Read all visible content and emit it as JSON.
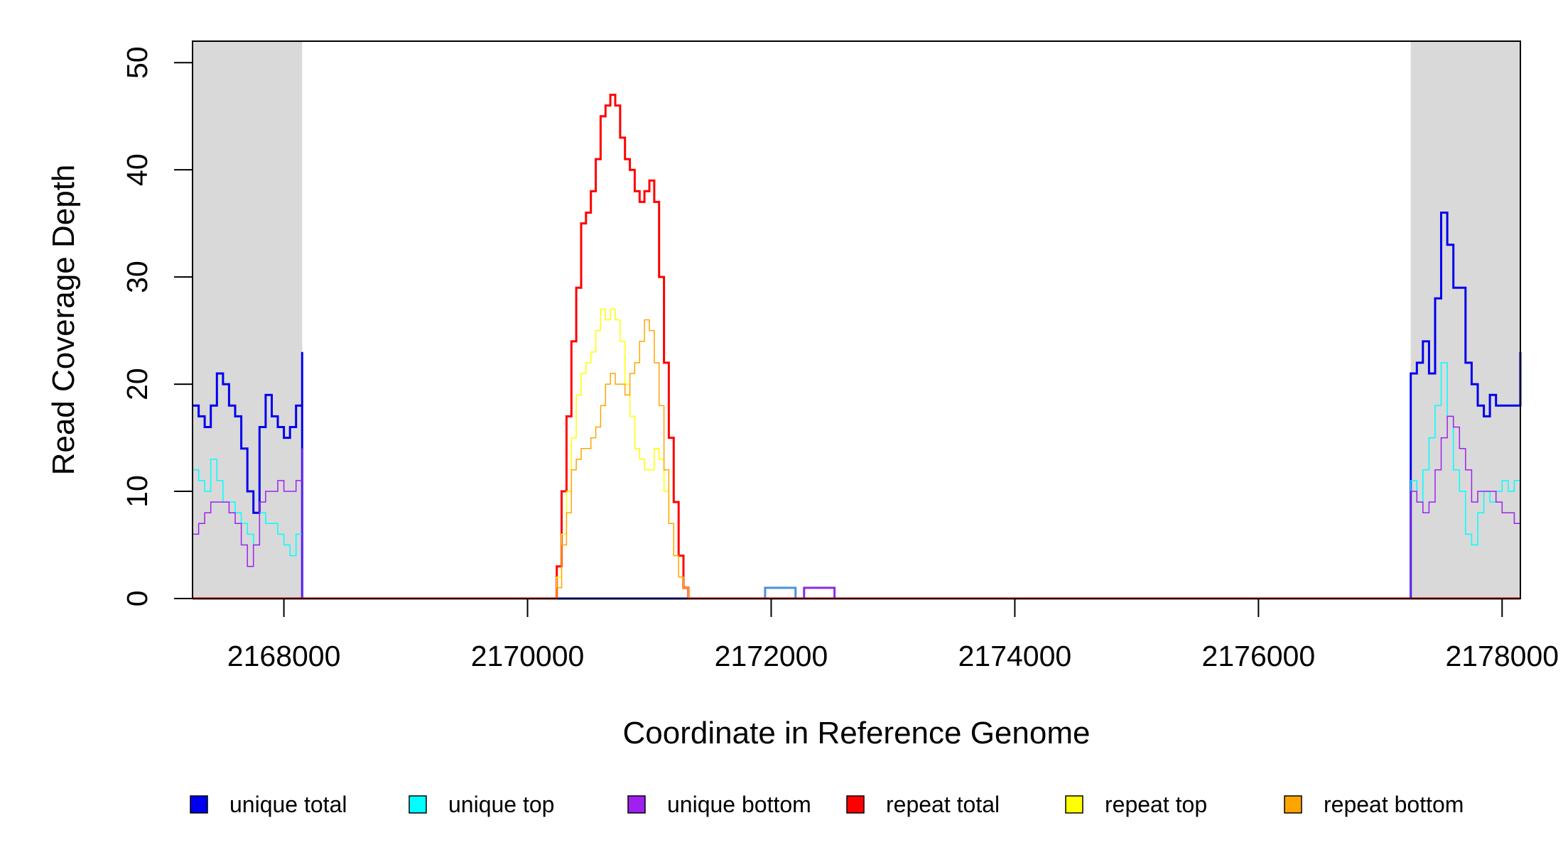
{
  "chart_data": {
    "type": "line",
    "title": "",
    "xlabel": "Coordinate in Reference Genome",
    "ylabel": "Read Coverage Depth",
    "xlim": [
      2167250,
      2178150
    ],
    "ylim": [
      0,
      52
    ],
    "x_ticks": [
      2168000,
      2170000,
      2172000,
      2174000,
      2176000,
      2178000
    ],
    "x_tick_labels": [
      "2168000",
      "2170000",
      "2172000",
      "2174000",
      "2176000",
      "2178000"
    ],
    "y_ticks": [
      0,
      10,
      20,
      30,
      40,
      50
    ],
    "y_tick_labels": [
      "0",
      "10",
      "20",
      "30",
      "40",
      "50"
    ],
    "grid": false,
    "legend_position": "bottom",
    "shaded_regions": [
      {
        "x0": 2167250,
        "x1": 2168150,
        "color": "#d9d9d9"
      },
      {
        "x0": 2177250,
        "x1": 2178150,
        "color": "#d9d9d9"
      }
    ],
    "boxes": [
      {
        "x0": 2171950,
        "x1": 2172200,
        "y0": 0,
        "y1": 1,
        "color": "#4a90e2"
      },
      {
        "x0": 2172270,
        "x1": 2172520,
        "y0": 0,
        "y1": 1,
        "color": "#8a2be2"
      }
    ],
    "series": [
      {
        "name": "unique total",
        "color": "#0000ee",
        "width": 3,
        "x": [
          2167250,
          2167300,
          2167350,
          2167400,
          2167450,
          2167500,
          2167550,
          2167600,
          2167650,
          2167700,
          2167750,
          2167800,
          2167850,
          2167900,
          2167950,
          2168000,
          2168050,
          2168100,
          2168150,
          2168150,
          2177250,
          2177250,
          2177300,
          2177350,
          2177400,
          2177450,
          2177500,
          2177550,
          2177600,
          2177650,
          2177700,
          2177750,
          2177800,
          2177850,
          2177900,
          2177950,
          2178000,
          2178050,
          2178100,
          2178150
        ],
        "y": [
          18,
          17,
          16,
          18,
          21,
          20,
          18,
          17,
          14,
          10,
          8,
          16,
          19,
          17,
          16,
          15,
          16,
          18,
          23,
          0,
          0,
          21,
          22,
          24,
          21,
          28,
          36,
          33,
          29,
          29,
          22,
          20,
          18,
          17,
          19,
          18,
          18,
          18,
          18,
          23
        ]
      },
      {
        "name": "unique top",
        "color": "#00ffff",
        "width": 1.5,
        "x": [
          2167250,
          2167300,
          2167350,
          2167400,
          2167450,
          2167500,
          2167550,
          2167600,
          2167650,
          2167700,
          2167750,
          2167800,
          2167850,
          2167900,
          2167950,
          2168000,
          2168050,
          2168100,
          2168150,
          2168150,
          2177250,
          2177250,
          2177300,
          2177350,
          2177400,
          2177450,
          2177500,
          2177550,
          2177600,
          2177650,
          2177700,
          2177750,
          2177800,
          2177850,
          2177900,
          2177950,
          2178000,
          2178050,
          2178100,
          2178150
        ],
        "y": [
          12,
          11,
          10,
          13,
          11,
          9,
          9,
          8,
          7,
          6,
          5,
          8,
          7,
          7,
          6,
          5,
          4,
          6,
          14,
          0,
          0,
          11,
          9,
          12,
          15,
          18,
          22,
          17,
          12,
          10,
          6,
          5,
          8,
          10,
          9,
          10,
          11,
          10,
          11,
          14
        ]
      },
      {
        "name": "unique bottom",
        "color": "#a020f0",
        "width": 1.5,
        "x": [
          2167250,
          2167300,
          2167350,
          2167400,
          2167450,
          2167500,
          2167550,
          2167600,
          2167650,
          2167700,
          2167750,
          2167800,
          2167850,
          2167900,
          2167950,
          2168000,
          2168050,
          2168100,
          2168150,
          2168150,
          2177250,
          2177250,
          2177300,
          2177350,
          2177400,
          2177450,
          2177500,
          2177550,
          2177600,
          2177650,
          2177700,
          2177750,
          2177800,
          2177850,
          2177900,
          2177950,
          2178000,
          2178050,
          2178100,
          2178150
        ],
        "y": [
          6,
          7,
          8,
          9,
          9,
          9,
          8,
          7,
          5,
          3,
          5,
          9,
          10,
          10,
          11,
          10,
          10,
          11,
          14,
          0,
          0,
          10,
          9,
          8,
          9,
          12,
          15,
          17,
          16,
          14,
          12,
          9,
          10,
          10,
          10,
          9,
          8,
          8,
          7,
          9
        ]
      },
      {
        "name": "repeat total",
        "color": "#ff0000",
        "width": 3,
        "x": [
          2167250,
          2170200,
          2170240,
          2170280,
          2170320,
          2170360,
          2170400,
          2170440,
          2170480,
          2170520,
          2170560,
          2170600,
          2170640,
          2170680,
          2170720,
          2170760,
          2170800,
          2170840,
          2170880,
          2170920,
          2170960,
          2171000,
          2171040,
          2171080,
          2171120,
          2171160,
          2171200,
          2171240,
          2171280,
          2171320,
          2171360,
          2171400,
          2171440,
          2171450,
          2178150
        ],
        "y": [
          0,
          0,
          3,
          10,
          17,
          24,
          29,
          35,
          36,
          38,
          41,
          45,
          46,
          47,
          46,
          43,
          41,
          40,
          38,
          37,
          38,
          39,
          37,
          30,
          22,
          15,
          9,
          4,
          1,
          0,
          0,
          0,
          0,
          0,
          0
        ]
      },
      {
        "name": "repeat top",
        "color": "#ffff00",
        "width": 1.5,
        "x": [
          2167250,
          2170200,
          2170240,
          2170280,
          2170320,
          2170360,
          2170400,
          2170440,
          2170480,
          2170520,
          2170560,
          2170600,
          2170640,
          2170680,
          2170720,
          2170760,
          2170800,
          2170840,
          2170880,
          2170920,
          2170960,
          2171000,
          2171040,
          2171080,
          2171120,
          2171160,
          2171200,
          2171240,
          2171280,
          2171320,
          2171360,
          2171400,
          2171440,
          2171450,
          2178150
        ],
        "y": [
          0,
          0,
          2,
          6,
          10,
          15,
          19,
          21,
          22,
          23,
          25,
          27,
          26,
          27,
          26,
          24,
          20,
          17,
          14,
          13,
          12,
          12,
          14,
          13,
          10,
          7,
          4,
          2,
          1,
          0,
          0,
          0,
          0,
          0,
          0
        ]
      },
      {
        "name": "repeat bottom",
        "color": "#ffa500",
        "width": 1.5,
        "x": [
          2167250,
          2170200,
          2170240,
          2170280,
          2170320,
          2170360,
          2170400,
          2170440,
          2170480,
          2170520,
          2170560,
          2170600,
          2170640,
          2170680,
          2170720,
          2170760,
          2170800,
          2170840,
          2170880,
          2170920,
          2170960,
          2171000,
          2171040,
          2171080,
          2171120,
          2171160,
          2171200,
          2171240,
          2171280,
          2171320,
          2171360,
          2171400,
          2171440,
          2171450,
          2178150
        ],
        "y": [
          0,
          0,
          1,
          5,
          8,
          12,
          13,
          14,
          14,
          15,
          16,
          18,
          20,
          21,
          20,
          20,
          19,
          21,
          22,
          24,
          26,
          25,
          22,
          18,
          12,
          7,
          4,
          2,
          1,
          0,
          0,
          0,
          0,
          0,
          0
        ]
      }
    ]
  }
}
